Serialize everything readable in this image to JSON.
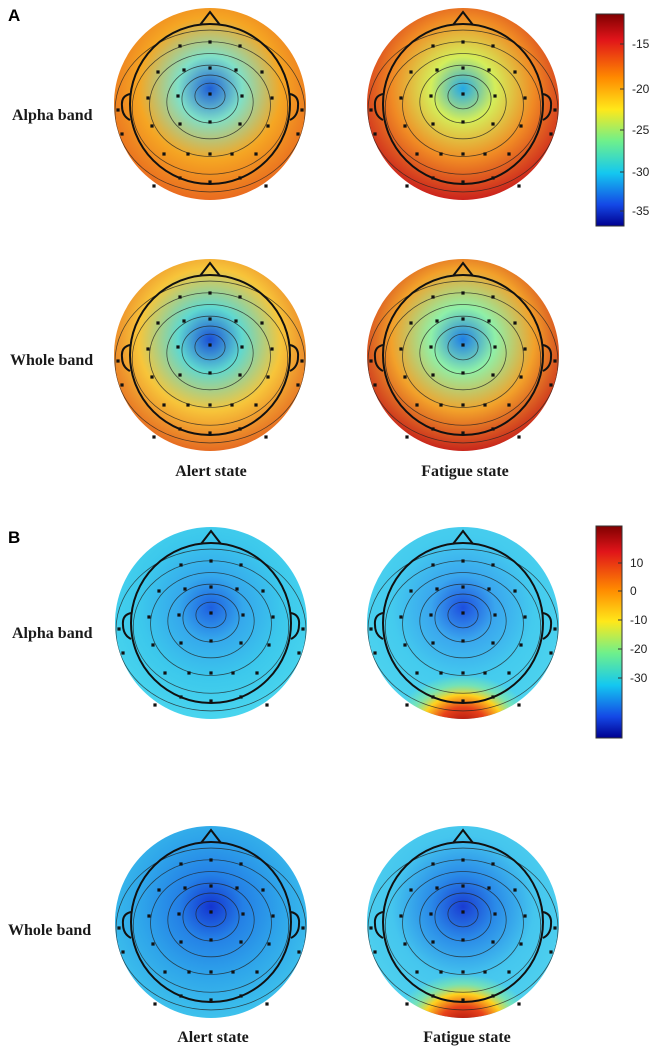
{
  "panels": [
    {
      "letter": "A",
      "row_labels": [
        "Alpha band",
        "Whole band"
      ],
      "col_labels": [
        "Alert state",
        "Fatigue state"
      ],
      "colorbar": {
        "ticks": [
          "-15",
          "-20",
          "-25",
          "-30",
          "-35"
        ]
      },
      "maps": [
        {
          "label": "Alpha band / Alert state",
          "base": "#f5a623",
          "rim": "#e8651f",
          "center": "#1f5fd6",
          "mid": "#7fe0c8"
        },
        {
          "label": "Alpha band / Fatigue state",
          "base": "#f08a24",
          "rim": "#c8191c",
          "center": "#23a8e8",
          "mid": "#d4ee5a"
        },
        {
          "label": "Whole band / Alert state",
          "base": "#f7c53a",
          "rim": "#e4621f",
          "center": "#1a4fd6",
          "mid": "#5fd8d0"
        },
        {
          "label": "Whole band / Fatigue state",
          "base": "#f2a12a",
          "rim": "#c41a1a",
          "center": "#1e7ee6",
          "mid": "#8ff0a8"
        }
      ]
    },
    {
      "letter": "B",
      "row_labels": [
        "Alpha band",
        "Whole band"
      ],
      "col_labels": [
        "Alert state",
        "Fatigue state"
      ],
      "colorbar": {
        "ticks": [
          "10",
          "0",
          "-10",
          "-20",
          "-30"
        ]
      },
      "maps": [
        {
          "label": "Alpha band / Alert state",
          "base": "#3cc8ec",
          "rim": "#4ad6ee",
          "center": "#1e5fe0",
          "mid": "#35a8ec"
        },
        {
          "label": "Alpha band / Fatigue state",
          "base": "#44cbee",
          "rim": "#4ed4ee",
          "center": "#1d4ede",
          "mid": "#3aa6ee",
          "hot": "#a40e10"
        },
        {
          "label": "Whole band / Alert state",
          "base": "#2fa6ea",
          "rim": "#3fc4ec",
          "center": "#1434d0",
          "mid": "#2480e6"
        },
        {
          "label": "Whole band / Fatigue state",
          "base": "#45c6ee",
          "rim": "#50d2ee",
          "center": "#1a3cd2",
          "mid": "#2a8ae8",
          "hot": "#a8100e"
        }
      ]
    }
  ]
}
